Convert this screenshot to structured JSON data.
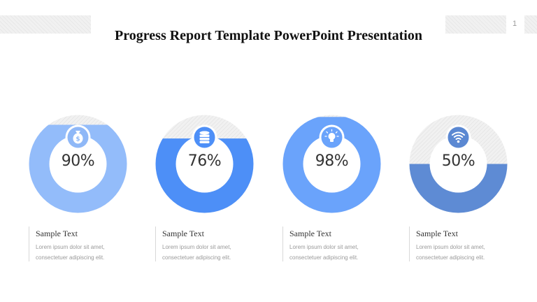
{
  "slide_number": "1",
  "title": "Progress Report Template PowerPoint Presentation",
  "colors": {
    "hatch": "#f1f1f1",
    "text": "#333333"
  },
  "cards": [
    {
      "percent_label": "90%",
      "value": 0.9,
      "color": "#93bcfa",
      "icon_bg": "#8fb8f7",
      "icon": "money-bag-icon",
      "caption_title": "Sample Text",
      "caption_line1": "Lorem ipsum dolor sit amet,",
      "caption_line2": "consectetuer adipiscing elit."
    },
    {
      "percent_label": "76%",
      "value": 0.76,
      "color": "#4d8ff7",
      "icon_bg": "#4d8ff7",
      "icon": "database-icon",
      "caption_title": "Sample Text",
      "caption_line1": "Lorem ipsum dolor sit amet,",
      "caption_line2": "consectetuer adipiscing elit."
    },
    {
      "percent_label": "98%",
      "value": 0.98,
      "color": "#6aa3fb",
      "icon_bg": "#6aa3fb",
      "icon": "lightbulb-icon",
      "caption_title": "Sample Text",
      "caption_line1": "Lorem ipsum dolor sit amet,",
      "caption_line2": "consectetuer adipiscing elit."
    },
    {
      "percent_label": "50%",
      "value": 0.5,
      "color": "#5e8bd4",
      "icon_bg": "#5b88d2",
      "icon": "wifi-icon",
      "caption_title": "Sample Text",
      "caption_line1": "Lorem ipsum dolor sit amet,",
      "caption_line2": "consectetuer adipiscing elit."
    }
  ]
}
